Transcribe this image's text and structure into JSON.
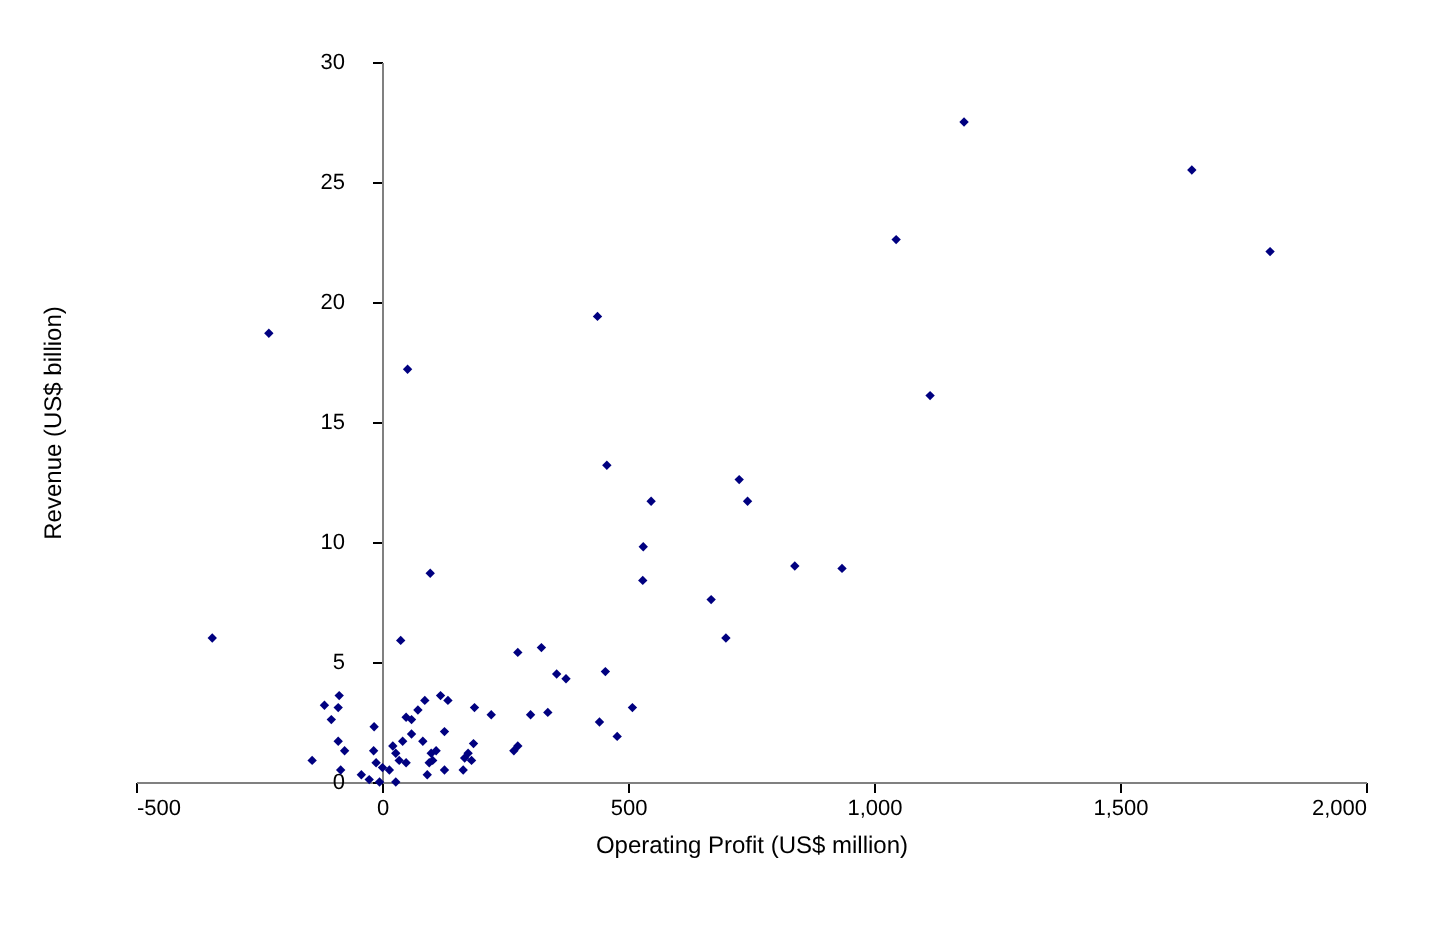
{
  "chart_data": {
    "type": "scatter",
    "xlabel": "Operating Profit (US$ million)",
    "ylabel": "Revenue (US$ billion)",
    "xlim": [
      -500,
      2000
    ],
    "xticks": [
      {
        "value": -500,
        "label": "-500"
      },
      {
        "value": 0,
        "label": "0"
      },
      {
        "value": 500,
        "label": "500"
      },
      {
        "value": 1000,
        "label": "1,000"
      },
      {
        "value": 1500,
        "label": "1,500"
      },
      {
        "value": 2000,
        "label": "2,000"
      }
    ],
    "ylim": [
      0,
      30
    ],
    "yticks": [
      0,
      5,
      10,
      15,
      20,
      25,
      30
    ],
    "grid": false,
    "marker": "diamond",
    "series": [
      {
        "color": "#000080",
        "x": [
          -230,
          52,
          438,
          457,
          547,
          726,
          743,
          1045,
          1114,
          1183,
          1646,
          1805,
          -345,
          98,
          531,
          530,
          669,
          699,
          839,
          935,
          454,
          509,
          442,
          478,
          38,
          -142,
          -117,
          -87,
          -89,
          -103,
          -89,
          -76,
          -84,
          -42,
          -26,
          -16,
          -17,
          -5,
          -12,
          1,
          15,
          22,
          28,
          35,
          42,
          49,
          28,
          49,
          60,
          73,
          87,
          60,
          83,
          100,
          96,
          92,
          103,
          119,
          134,
          127,
          110,
          127,
          168,
          175,
          165,
          186,
          182,
          188,
          222,
          268,
          276,
          276,
          324,
          355,
          374,
          302,
          337
        ],
        "values": [
          18.7,
          17.2,
          19.4,
          13.2,
          11.7,
          12.6,
          11.7,
          22.6,
          16.1,
          27.5,
          25.5,
          22.1,
          6.0,
          8.7,
          9.8,
          8.4,
          7.6,
          6.0,
          9.0,
          8.9,
          4.6,
          3.1,
          2.5,
          1.9,
          5.9,
          0.9,
          3.2,
          3.6,
          3.1,
          2.6,
          1.7,
          1.3,
          0.5,
          0.3,
          0.1,
          2.3,
          1.3,
          0.0,
          0.8,
          0.6,
          0.5,
          1.5,
          1.2,
          0.9,
          1.7,
          0.8,
          0.0,
          2.7,
          2.6,
          3.0,
          3.4,
          2.0,
          1.7,
          1.2,
          0.8,
          0.3,
          0.9,
          3.6,
          3.4,
          2.1,
          1.3,
          0.5,
          1.0,
          1.2,
          0.5,
          1.6,
          0.9,
          3.1,
          2.8,
          1.3,
          1.5,
          5.4,
          5.6,
          4.5,
          4.3,
          2.8,
          2.9
        ]
      }
    ]
  }
}
